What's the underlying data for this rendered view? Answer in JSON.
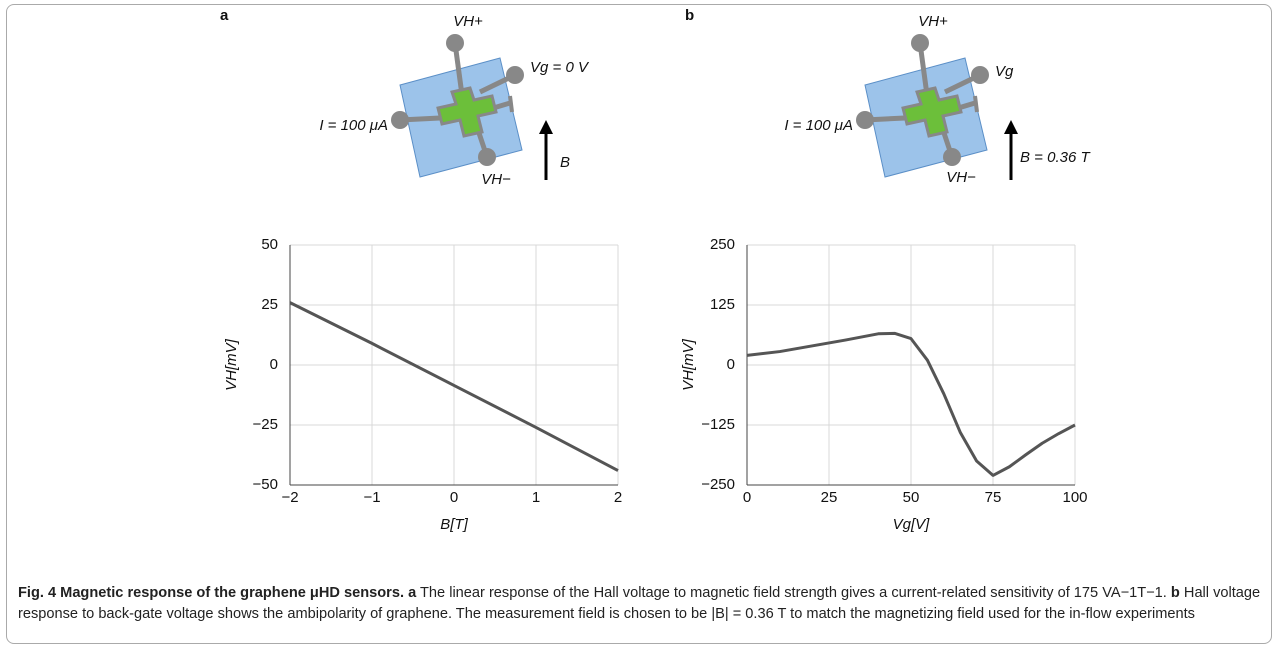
{
  "chart_data": [
    {
      "type": "line",
      "title": "a",
      "annotations": [
        "VH+",
        "Vg = 0 V",
        "I = 100 μA",
        "VH−",
        "B"
      ],
      "x_label": "B[T]",
      "y_label": "VH[mV]",
      "x": [
        -2,
        -1,
        0,
        1,
        2
      ],
      "series": [
        {
          "color": "#555555",
          "values": [
            26,
            9,
            -8.5,
            -26,
            -44
          ]
        }
      ],
      "xlim": [
        -2,
        2
      ],
      "xticks": [
        {
          "value": -2,
          "label": "−2"
        },
        {
          "value": -1,
          "label": "−1"
        },
        0,
        1,
        2
      ],
      "ylim": [
        -50,
        50
      ],
      "yticks": [
        {
          "value": -50,
          "label": "−50"
        },
        {
          "value": -25,
          "label": "−25"
        },
        0,
        25,
        50
      ],
      "grid": true
    },
    {
      "type": "line",
      "title": "b",
      "annotations": [
        "VH+",
        "Vg",
        "I = 100 μA",
        "VH−",
        "B = 0.36 T"
      ],
      "x_label": "Vg[V]",
      "y_label": "VH[mV]",
      "x": [
        0,
        10,
        20,
        30,
        40,
        45,
        50,
        55,
        60,
        65,
        70,
        75,
        80,
        85,
        90,
        95,
        100
      ],
      "series": [
        {
          "color": "#555555",
          "values": [
            20,
            28,
            40,
            52,
            65,
            66,
            55,
            10,
            -60,
            -140,
            -200,
            -230,
            -212,
            -187,
            -163,
            -143,
            -125
          ]
        }
      ],
      "xlim": [
        0,
        100
      ],
      "xticks": [
        0,
        25,
        50,
        75,
        100
      ],
      "ylim": [
        -250,
        250
      ],
      "yticks": [
        {
          "value": -250,
          "label": "−250"
        },
        {
          "value": -125,
          "label": "−125"
        },
        0,
        125,
        250
      ],
      "grid": true
    }
  ],
  "caption": {
    "title": "Fig. 4 Magnetic response of the graphene μHD sensors.",
    "parts": [
      {
        "label": "a",
        "text": "The linear response of the Hall voltage to magnetic field strength gives a current-related sensitivity of 175 VA−1T−1."
      },
      {
        "label": "b",
        "text": "Hall voltage response to back-gate voltage shows the ambipolarity of graphene. The measurement field is chosen to be |B| = 0.36 T to match the magnetizing field used for the in-flow experiments"
      }
    ]
  }
}
